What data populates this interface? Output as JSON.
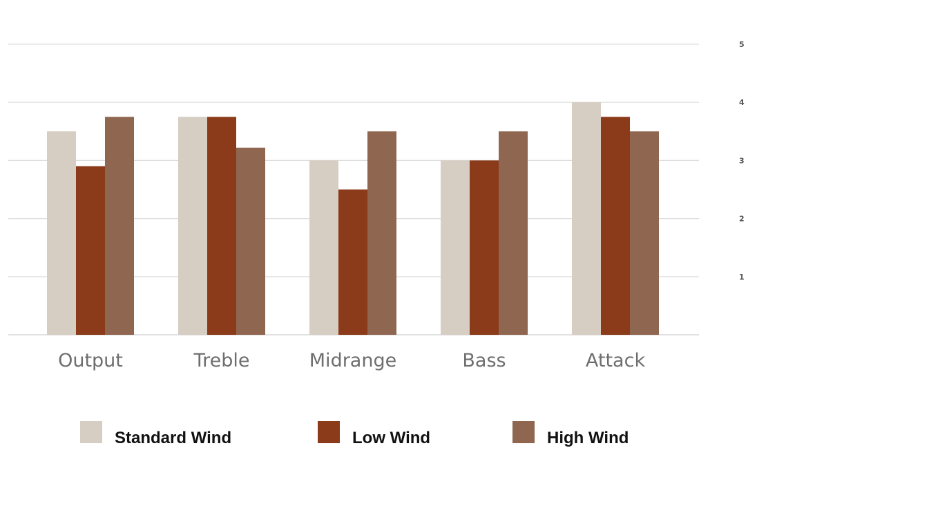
{
  "chart_data": {
    "type": "bar",
    "title": "",
    "xlabel": "",
    "ylabel": "",
    "categories": [
      "Output",
      "Treble",
      "Midrange",
      "Bass",
      "Attack"
    ],
    "series": [
      {
        "name": "Standard Wind",
        "color": "#d6cdc3",
        "values": [
          3.5,
          3.75,
          3.0,
          3.0,
          4.0
        ]
      },
      {
        "name": "Low Wind",
        "color": "#8b3a1a",
        "values": [
          2.9,
          3.75,
          2.5,
          3.0,
          3.75
        ]
      },
      {
        "name": "High Wind",
        "color": "#8f6650",
        "values": [
          3.75,
          3.22,
          3.5,
          3.5,
          3.5
        ]
      }
    ],
    "ylim": [
      0,
      5
    ],
    "yticks": [
      "1",
      "2",
      "3",
      "4",
      "5"
    ],
    "grid": true,
    "y_axis_side": "right",
    "legend_position": "bottom"
  }
}
